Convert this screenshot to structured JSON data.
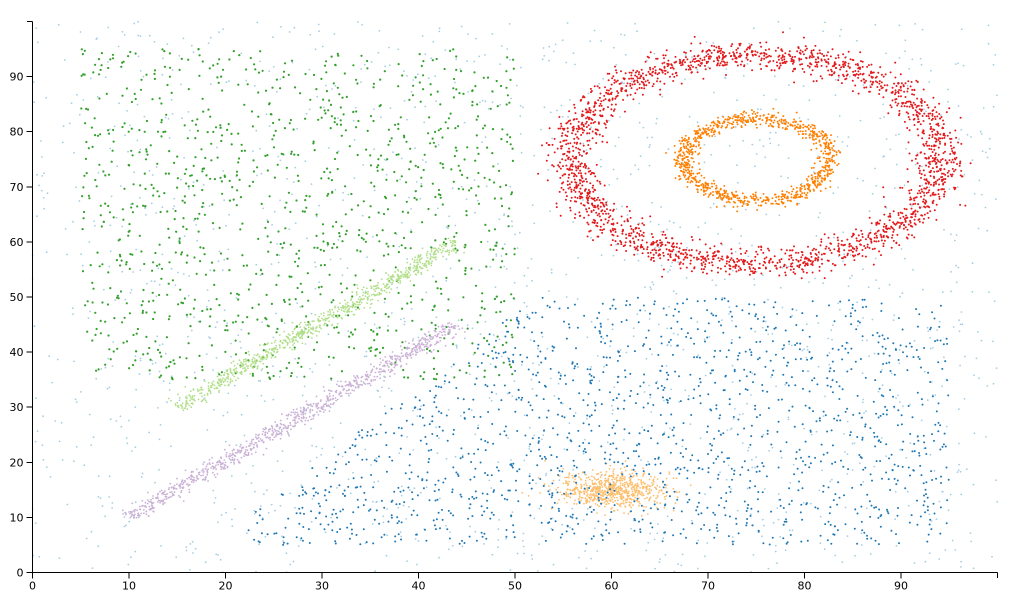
{
  "chart_data": {
    "type": "scatter",
    "xlim": [
      0,
      100
    ],
    "ylim": [
      0,
      100
    ],
    "grid": false,
    "legend": "none",
    "x_ticks": [
      0,
      10,
      20,
      30,
      40,
      50,
      60,
      70,
      80,
      90
    ],
    "y_ticks": [
      0,
      10,
      20,
      30,
      40,
      50,
      60,
      70,
      80,
      90
    ],
    "x_tick_labels": [
      "0",
      "10",
      "20",
      "30",
      "40",
      "50",
      "60",
      "70",
      "80",
      "90"
    ],
    "y_tick_labels": [
      "0",
      "10",
      "20",
      "30",
      "40",
      "50",
      "60",
      "70",
      "80",
      "90"
    ],
    "series": [
      {
        "shape": "uniform-noise",
        "color": "#a6cee3",
        "count": 1600,
        "x_range": [
          0,
          100
        ],
        "y_range": [
          0,
          100
        ],
        "point_radius": 0.9
      },
      {
        "shape": "uniform-rectangle",
        "color": "#33a02c",
        "count": 1100,
        "x_range": [
          5,
          50
        ],
        "y_range": [
          35,
          95
        ],
        "point_radius": 1.1,
        "points": [
          [
            6.2,
            42.1
          ],
          [
            12.5,
            56.3
          ],
          [
            18.9,
            71.4
          ],
          [
            22.3,
            88.6
          ],
          [
            30.1,
            63.2
          ],
          [
            34.7,
            91.5
          ],
          [
            41.2,
            77.9
          ],
          [
            45.6,
            85.4
          ],
          [
            8.4,
            78.2
          ],
          [
            15.6,
            48.9
          ],
          [
            27.8,
            52.4
          ],
          [
            38.5,
            60.7
          ],
          [
            48.1,
            89.2
          ],
          [
            20.4,
            93.1
          ],
          [
            11.7,
            66.5
          ]
        ]
      },
      {
        "shape": "line-band",
        "color": "#b2df8a",
        "count": 800,
        "from": [
          15,
          30
        ],
        "to": [
          44,
          60
        ],
        "spread": 1.3,
        "point_radius": 0.9
      },
      {
        "shape": "line-band",
        "color": "#cab2d6",
        "count": 900,
        "from": [
          10,
          10
        ],
        "to": [
          44,
          45
        ],
        "spread": 1.3,
        "point_radius": 0.9
      },
      {
        "shape": "ring",
        "color": "#e31a1c",
        "count": 2200,
        "center": [
          75,
          75
        ],
        "radii": [
          19,
          19
        ],
        "thickness": 2.8,
        "point_radius": 1.0
      },
      {
        "shape": "ring",
        "color": "#ff7f00",
        "count": 900,
        "center": [
          75,
          75
        ],
        "radii": [
          7.5,
          7.5
        ],
        "thickness": 1.4,
        "point_radius": 0.95
      },
      {
        "shape": "gaussian-blob",
        "color": "#fdbf6f",
        "count": 700,
        "center": [
          60,
          15
        ],
        "sigma": [
          2.8,
          1.7
        ],
        "point_radius": 0.9
      },
      {
        "shape": "uniform-polygon",
        "color": "#1f78b4",
        "count": 1500,
        "polygon": [
          [
            22,
            5
          ],
          [
            95,
            5
          ],
          [
            95,
            50
          ],
          [
            52,
            50
          ],
          [
            22,
            10
          ]
        ],
        "point_radius": 1.0
      }
    ]
  }
}
